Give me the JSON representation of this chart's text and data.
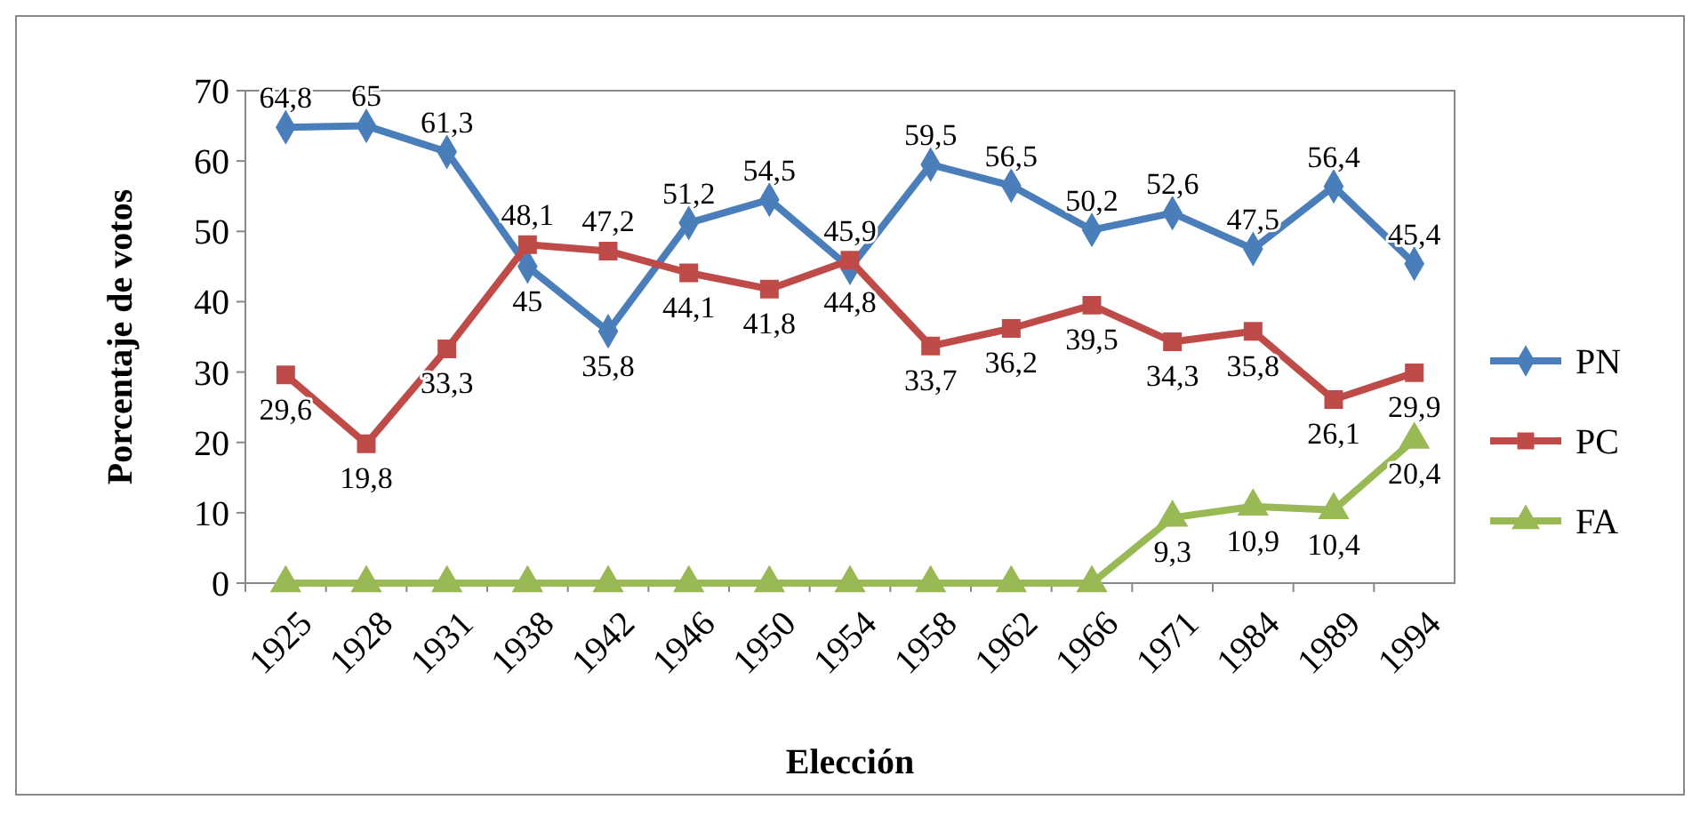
{
  "chart_data": {
    "type": "line",
    "xlabel": "Elección",
    "ylabel": "Porcentaje de votos",
    "categories": [
      "1925",
      "1928",
      "1931",
      "1938",
      "1942",
      "1946",
      "1950",
      "1954",
      "1958",
      "1962",
      "1966",
      "1971",
      "1984",
      "1989",
      "1994"
    ],
    "ylim": [
      0,
      70
    ],
    "yticks": [
      0,
      10,
      20,
      30,
      40,
      50,
      60,
      70
    ],
    "grid": false,
    "legend": "right",
    "series": [
      {
        "name": "PN",
        "color": "#4a7ebb",
        "marker": "diamond",
        "values": [
          64.8,
          65,
          61.3,
          45,
          35.8,
          51.2,
          54.5,
          44.8,
          59.5,
          56.5,
          50.2,
          52.6,
          47.5,
          56.4,
          45.4
        ],
        "value_labels": [
          "64,8",
          "65",
          "61,3",
          "45",
          "35,8",
          "51,2",
          "54,5",
          "44,8",
          "59,5",
          "56,5",
          "50,2",
          "52,6",
          "47,5",
          "56,4",
          "45,4"
        ]
      },
      {
        "name": "PC",
        "color": "#be4b48",
        "marker": "square",
        "values": [
          29.6,
          19.8,
          33.3,
          48.1,
          47.2,
          44.1,
          41.8,
          45.9,
          33.7,
          36.2,
          39.5,
          34.3,
          35.8,
          26.1,
          29.9
        ],
        "value_labels": [
          "29,6",
          "19,8",
          "33,3",
          "48,1",
          "47,2",
          "44,1",
          "41,8",
          "45,9",
          "33,7",
          "36,2",
          "39,5",
          "34,3",
          "35,8",
          "26,1",
          "29,9"
        ]
      },
      {
        "name": "FA",
        "color": "#98b954",
        "marker": "triangle",
        "values": [
          0,
          0,
          0,
          0,
          0,
          0,
          0,
          0,
          0,
          0,
          0,
          9.3,
          10.9,
          10.4,
          20.4
        ],
        "value_labels": [
          null,
          null,
          null,
          null,
          null,
          null,
          null,
          null,
          null,
          null,
          null,
          "9,3",
          "10,9",
          "10,4",
          "20,4"
        ]
      }
    ]
  }
}
